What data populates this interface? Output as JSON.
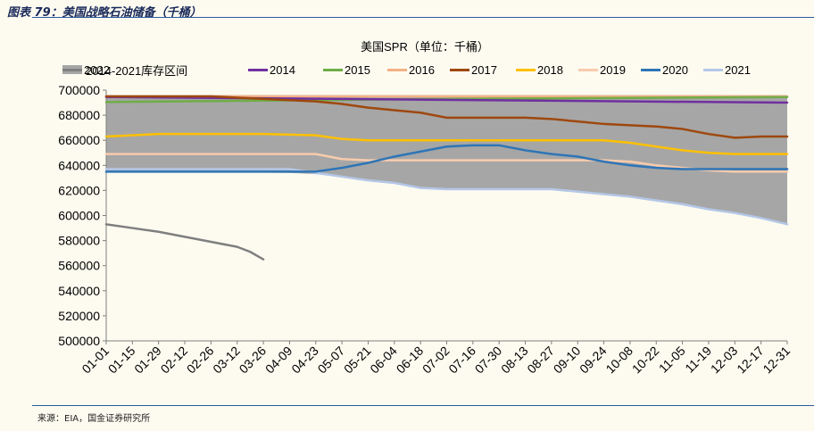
{
  "figure": {
    "title": "图表 79：美国战略石油储备（千桶）",
    "source": "来源：EIA，国金证券研究所"
  },
  "chart_data": {
    "type": "line",
    "title": "美国SPR（单位：千桶）",
    "xlabel": "",
    "ylabel": "",
    "ylim": [
      500000,
      700000
    ],
    "yticks": [
      500000,
      520000,
      540000,
      560000,
      580000,
      600000,
      620000,
      640000,
      660000,
      680000,
      700000
    ],
    "x_tick_labels": [
      "01-01",
      "01-15",
      "01-29",
      "02-12",
      "02-26",
      "03-12",
      "03-26",
      "04-09",
      "04-23",
      "05-07",
      "05-21",
      "06-04",
      "06-18",
      "07-02",
      "07-16",
      "07-30",
      "08-13",
      "08-27",
      "09-10",
      "09-24",
      "10-08",
      "10-22",
      "11-05",
      "11-19",
      "12-03",
      "12-17",
      "12-31"
    ],
    "grid": false,
    "legend_position": "top",
    "range_band": {
      "name": "2014-2021库存区间",
      "color": "#a6a6a6",
      "upper": [
        [
          0,
          696000
        ],
        [
          26,
          696000
        ]
      ],
      "lower": [
        [
          0,
          635000
        ],
        [
          7,
          634000
        ],
        [
          8,
          633000
        ],
        [
          9,
          631000
        ],
        [
          10,
          628000
        ],
        [
          11,
          626000
        ],
        [
          12,
          622000
        ],
        [
          13,
          621000
        ],
        [
          14,
          621000
        ],
        [
          15,
          621000
        ],
        [
          16,
          621000
        ],
        [
          17,
          621000
        ],
        [
          18,
          619000
        ],
        [
          19,
          617000
        ],
        [
          20,
          615000
        ],
        [
          21,
          612000
        ],
        [
          22,
          609000
        ],
        [
          23,
          605000
        ],
        [
          24,
          602000
        ],
        [
          25,
          598000
        ],
        [
          26,
          593000
        ]
      ]
    },
    "series": [
      {
        "name": "2014",
        "color": "#7030a0",
        "points": [
          [
            0,
            694500
          ],
          [
            26,
            690000
          ]
        ]
      },
      {
        "name": "2015",
        "color": "#70ad47",
        "points": [
          [
            0,
            690500
          ],
          [
            13,
            693000
          ],
          [
            26,
            694500
          ]
        ]
      },
      {
        "name": "2016",
        "color": "#f4b183",
        "points": [
          [
            0,
            695000
          ],
          [
            26,
            695000
          ]
        ]
      },
      {
        "name": "2017",
        "color": "#9e480e",
        "points": [
          [
            0,
            695000
          ],
          [
            4,
            695000
          ],
          [
            6,
            693000
          ],
          [
            8,
            691000
          ],
          [
            9,
            689000
          ],
          [
            10,
            686000
          ],
          [
            11,
            684000
          ],
          [
            12,
            682000
          ],
          [
            13,
            678000
          ],
          [
            14,
            678000
          ],
          [
            15,
            678000
          ],
          [
            16,
            678000
          ],
          [
            17,
            677000
          ],
          [
            18,
            675000
          ],
          [
            19,
            673000
          ],
          [
            20,
            672000
          ],
          [
            21,
            671000
          ],
          [
            22,
            669000
          ],
          [
            23,
            665000
          ],
          [
            24,
            662000
          ],
          [
            25,
            663000
          ],
          [
            26,
            663000
          ]
        ]
      },
      {
        "name": "2018",
        "color": "#ffc000",
        "points": [
          [
            0,
            663000
          ],
          [
            1,
            664000
          ],
          [
            2,
            665000
          ],
          [
            3,
            665000
          ],
          [
            6,
            665000
          ],
          [
            8,
            664000
          ],
          [
            9,
            661000
          ],
          [
            10,
            660000
          ],
          [
            11,
            660000
          ],
          [
            19,
            660000
          ],
          [
            20,
            658000
          ],
          [
            21,
            655000
          ],
          [
            22,
            652000
          ],
          [
            23,
            650000
          ],
          [
            24,
            649000
          ],
          [
            25,
            649000
          ],
          [
            26,
            649000
          ]
        ]
      },
      {
        "name": "2019",
        "color": "#f8cbad",
        "points": [
          [
            0,
            649000
          ],
          [
            8,
            649000
          ],
          [
            9,
            645000
          ],
          [
            10,
            644000
          ],
          [
            19,
            644000
          ],
          [
            20,
            643000
          ],
          [
            21,
            640000
          ],
          [
            22,
            638000
          ],
          [
            23,
            636000
          ],
          [
            24,
            635000
          ],
          [
            26,
            635000
          ]
        ]
      },
      {
        "name": "2020",
        "color": "#2e75b6",
        "points": [
          [
            0,
            635000
          ],
          [
            7,
            635000
          ],
          [
            8,
            635000
          ],
          [
            9,
            638000
          ],
          [
            10,
            642000
          ],
          [
            11,
            647000
          ],
          [
            12,
            651000
          ],
          [
            13,
            655000
          ],
          [
            14,
            656000
          ],
          [
            15,
            656000
          ],
          [
            16,
            652000
          ],
          [
            17,
            649000
          ],
          [
            18,
            647000
          ],
          [
            19,
            643000
          ],
          [
            20,
            640000
          ],
          [
            21,
            638000
          ],
          [
            22,
            637000
          ],
          [
            26,
            637000
          ]
        ]
      },
      {
        "name": "2021",
        "color": "#b4c7e7",
        "points": [
          [
            0,
            637000
          ],
          [
            7,
            637000
          ],
          [
            8,
            634000
          ],
          [
            9,
            631000
          ],
          [
            10,
            628000
          ],
          [
            11,
            626000
          ],
          [
            12,
            622000
          ],
          [
            13,
            621000
          ],
          [
            17,
            621000
          ],
          [
            18,
            619000
          ],
          [
            19,
            617000
          ],
          [
            20,
            615000
          ],
          [
            21,
            612000
          ],
          [
            22,
            609000
          ],
          [
            23,
            605000
          ],
          [
            24,
            602000
          ],
          [
            25,
            598000
          ],
          [
            26,
            593000
          ]
        ]
      },
      {
        "name": "2022",
        "color": "#7f7f7f",
        "points": [
          [
            0,
            593000
          ],
          [
            1,
            590000
          ],
          [
            2,
            587000
          ],
          [
            3,
            583000
          ],
          [
            4,
            579000
          ],
          [
            5,
            575000
          ],
          [
            5.5,
            571000
          ],
          [
            6,
            565000
          ]
        ]
      }
    ]
  }
}
